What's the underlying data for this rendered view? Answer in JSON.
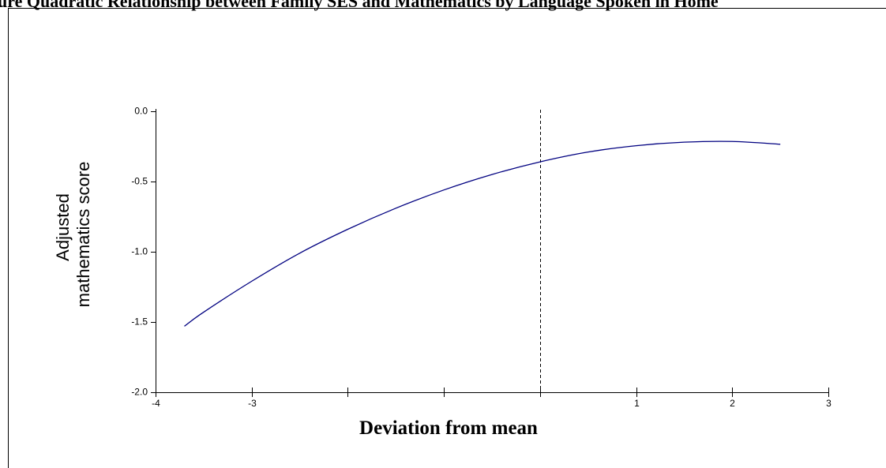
{
  "figure": {
    "title": "gure Quadratic Relationship between Family SES and Mathematics by Language Spoken in Home",
    "border_color": "#000000"
  },
  "chart_data": {
    "type": "line",
    "xlabel": "Deviation from mean",
    "ylabel_lines": [
      "Adjusted",
      "mathematics score"
    ],
    "xlim": [
      -4,
      3
    ],
    "ylim": [
      -2.0,
      0.0
    ],
    "x_ticks": [
      -4,
      -3,
      -2,
      -1,
      0,
      1,
      2,
      3
    ],
    "x_tick_labels": [
      "-4",
      "-3",
      "",
      "",
      "",
      "1",
      "2",
      "3"
    ],
    "y_ticks": [
      0.0,
      -0.5,
      -1.0,
      -1.5,
      -2.0
    ],
    "y_tick_labels": [
      "0.0",
      "-0.5",
      "-1.0",
      "-1.5",
      "-2.0"
    ],
    "reference_line": {
      "x": 0,
      "style": "dashed",
      "color": "#000000"
    },
    "series": [
      {
        "color": "#000080",
        "x": [
          -3.7,
          -3.5,
          -3.0,
          -2.5,
          -2.0,
          -1.5,
          -1.0,
          -0.5,
          0.0,
          0.5,
          1.0,
          1.5,
          2.0,
          2.5
        ],
        "y": [
          -1.53,
          -1.43,
          -1.21,
          -1.01,
          -0.84,
          -0.69,
          -0.56,
          -0.45,
          -0.36,
          -0.29,
          -0.245,
          -0.22,
          -0.215,
          -0.235
        ]
      }
    ]
  }
}
